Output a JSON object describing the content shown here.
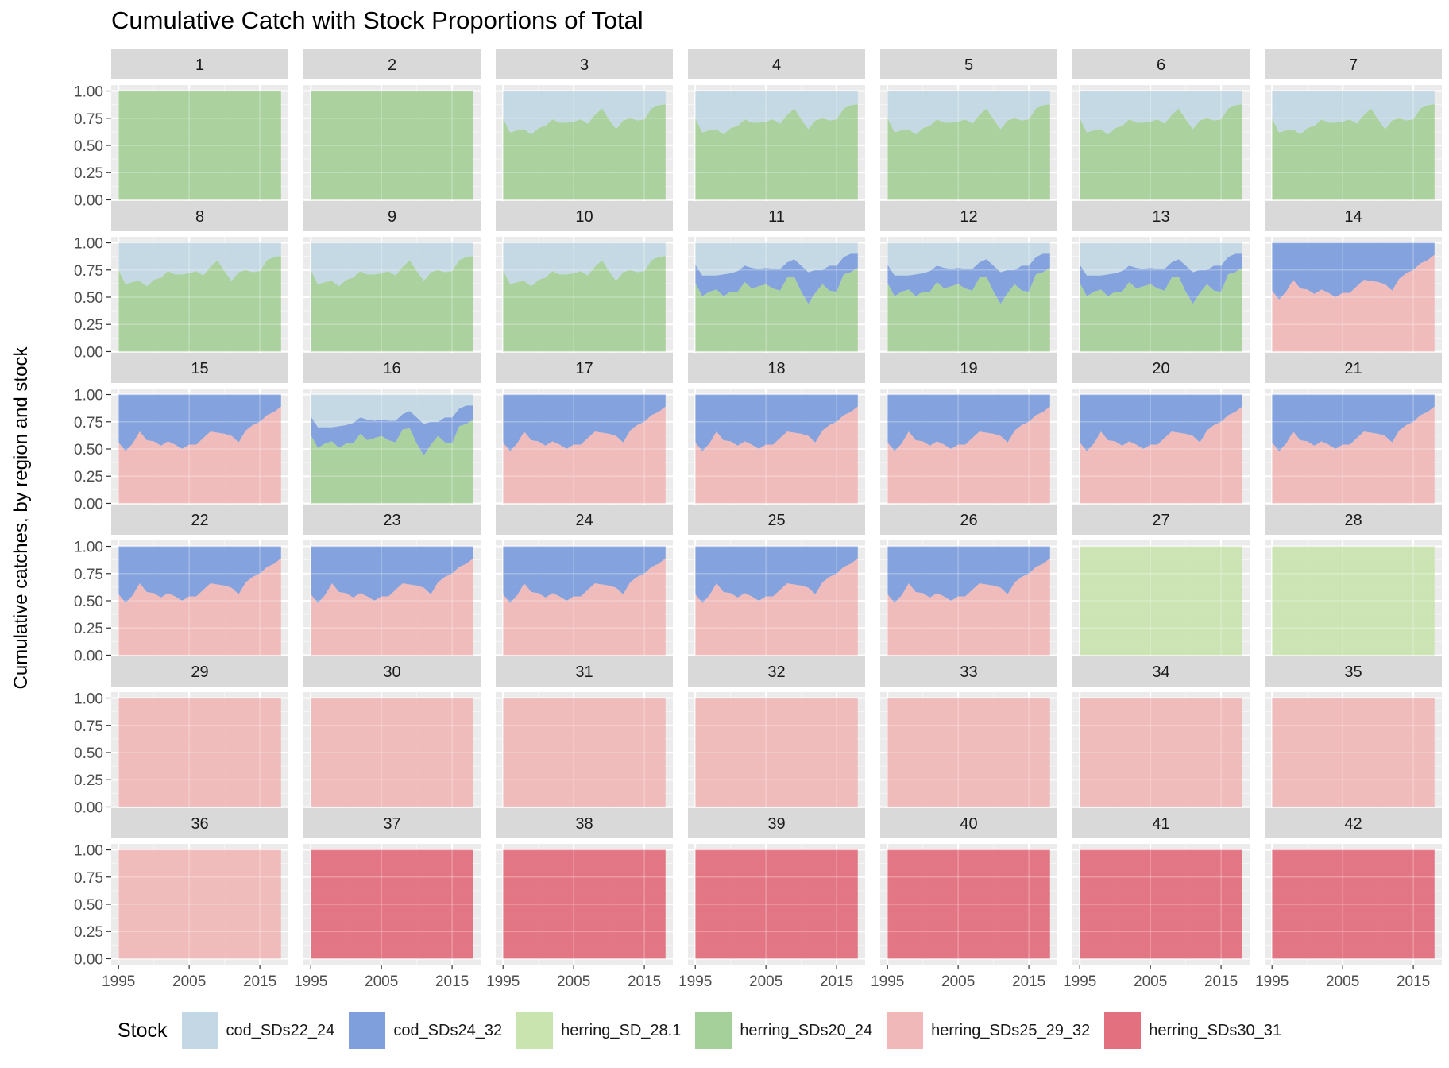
{
  "chart_data": {
    "type": "area",
    "title": "Cumulative Catch with Stock Proportions of Total",
    "xlabel": "",
    "ylabel": "Cumulative catches, by region and stock",
    "stacking": "fill",
    "facet_layout": {
      "ncol": 7,
      "nrow": 6
    },
    "xlim": [
      1995,
      2018
    ],
    "ylim": [
      0,
      1
    ],
    "x_ticks": [
      1995,
      2005,
      2015
    ],
    "y_ticks": [
      "0.00",
      "0.25",
      "0.50",
      "0.75",
      "1.00"
    ],
    "grid": true,
    "legend": {
      "title": "Stock",
      "position": "bottom",
      "entries": [
        "cod_SDs22_24",
        "cod_SDs24_32",
        "herring_SD_28.1",
        "herring_SDs20_24",
        "herring_SDs25_29_32",
        "herring_SDs30_31"
      ]
    },
    "colors": {
      "cod_SDs22_24": "#c3d8e4",
      "cod_SDs24_32": "#7e9edc",
      "herring_SD_28.1": "#cae4b0",
      "herring_SDs20_24": "#a6d09a",
      "herring_SDs25_29_32": "#f0b8b8",
      "herring_SDs30_31": "#e3707f"
    },
    "years": [
      1995,
      1996,
      1997,
      1998,
      1999,
      2000,
      2001,
      2002,
      2003,
      2004,
      2005,
      2006,
      2007,
      2008,
      2009,
      2010,
      2011,
      2012,
      2013,
      2014,
      2015,
      2016,
      2017,
      2018
    ],
    "profiles": {
      "H20": [
        {
          "stock": "herring_SDs20_24",
          "values": [
            0.75,
            0.62,
            0.64,
            0.65,
            0.6,
            0.66,
            0.68,
            0.74,
            0.71,
            0.71,
            0.72,
            0.74,
            0.7,
            0.78,
            0.84,
            0.74,
            0.65,
            0.73,
            0.75,
            0.73,
            0.74,
            0.84,
            0.87,
            0.88
          ]
        },
        {
          "stock": "cod_SDs22_24",
          "values": [
            0.25,
            0.38,
            0.36,
            0.35,
            0.4,
            0.34,
            0.32,
            0.26,
            0.29,
            0.29,
            0.28,
            0.26,
            0.3,
            0.22,
            0.16,
            0.26,
            0.35,
            0.27,
            0.25,
            0.27,
            0.26,
            0.16,
            0.13,
            0.12
          ]
        }
      ],
      "H3": [
        {
          "stock": "herring_SDs20_24",
          "values": [
            0.63,
            0.51,
            0.55,
            0.57,
            0.51,
            0.55,
            0.55,
            0.64,
            0.58,
            0.6,
            0.62,
            0.58,
            0.56,
            0.68,
            0.69,
            0.55,
            0.44,
            0.54,
            0.62,
            0.56,
            0.55,
            0.71,
            0.73,
            0.77
          ]
        },
        {
          "stock": "cod_SDs24_32",
          "values": [
            0.17,
            0.19,
            0.15,
            0.13,
            0.2,
            0.17,
            0.19,
            0.15,
            0.19,
            0.16,
            0.15,
            0.18,
            0.2,
            0.14,
            0.16,
            0.24,
            0.29,
            0.21,
            0.13,
            0.23,
            0.24,
            0.16,
            0.17,
            0.13
          ]
        },
        {
          "stock": "cod_SDs22_24",
          "values": [
            0.2,
            0.3,
            0.3,
            0.3,
            0.29,
            0.28,
            0.26,
            0.21,
            0.23,
            0.24,
            0.23,
            0.24,
            0.24,
            0.18,
            0.15,
            0.21,
            0.27,
            0.25,
            0.25,
            0.21,
            0.21,
            0.13,
            0.1,
            0.1
          ]
        }
      ],
      "HC": [
        {
          "stock": "herring_SDs25_29_32",
          "values": [
            0.56,
            0.48,
            0.55,
            0.66,
            0.58,
            0.57,
            0.53,
            0.57,
            0.54,
            0.5,
            0.54,
            0.54,
            0.6,
            0.66,
            0.65,
            0.64,
            0.62,
            0.56,
            0.67,
            0.72,
            0.75,
            0.81,
            0.84,
            0.89
          ]
        },
        {
          "stock": "cod_SDs24_32",
          "values": [
            0.44,
            0.52,
            0.45,
            0.34,
            0.42,
            0.43,
            0.47,
            0.43,
            0.46,
            0.5,
            0.46,
            0.46,
            0.4,
            0.34,
            0.35,
            0.36,
            0.38,
            0.44,
            0.33,
            0.28,
            0.25,
            0.19,
            0.16,
            0.11
          ]
        }
      ],
      "G": [
        {
          "stock": "herring_SDs20_24",
          "values": [
            1,
            1,
            1,
            1,
            1,
            1,
            1,
            1,
            1,
            1,
            1,
            1,
            1,
            1,
            1,
            1,
            1,
            1,
            1,
            1,
            1,
            1,
            1,
            1
          ]
        }
      ],
      "LG": [
        {
          "stock": "herring_SD_28.1",
          "values": [
            1,
            1,
            1,
            1,
            1,
            1,
            1,
            1,
            1,
            1,
            1,
            1,
            1,
            1,
            1,
            1,
            1,
            1,
            1,
            1,
            1,
            1,
            1,
            1
          ]
        }
      ],
      "P": [
        {
          "stock": "herring_SDs25_29_32",
          "values": [
            1,
            1,
            1,
            1,
            1,
            1,
            1,
            1,
            1,
            1,
            1,
            1,
            1,
            1,
            1,
            1,
            1,
            1,
            1,
            1,
            1,
            1,
            1,
            1
          ]
        }
      ],
      "R": [
        {
          "stock": "herring_SDs30_31",
          "values": [
            1,
            1,
            1,
            1,
            1,
            1,
            1,
            1,
            1,
            1,
            1,
            1,
            1,
            1,
            1,
            1,
            1,
            1,
            1,
            1,
            1,
            1,
            1,
            1
          ]
        }
      ]
    },
    "panels": [
      {
        "label": "1",
        "profile": "G"
      },
      {
        "label": "2",
        "profile": "G"
      },
      {
        "label": "3",
        "profile": "H20"
      },
      {
        "label": "4",
        "profile": "H20"
      },
      {
        "label": "5",
        "profile": "H20"
      },
      {
        "label": "6",
        "profile": "H20"
      },
      {
        "label": "7",
        "profile": "H20"
      },
      {
        "label": "8",
        "profile": "H20"
      },
      {
        "label": "9",
        "profile": "H20"
      },
      {
        "label": "10",
        "profile": "H20"
      },
      {
        "label": "11",
        "profile": "H3"
      },
      {
        "label": "12",
        "profile": "H3"
      },
      {
        "label": "13",
        "profile": "H3"
      },
      {
        "label": "14",
        "profile": "HC"
      },
      {
        "label": "15",
        "profile": "HC"
      },
      {
        "label": "16",
        "profile": "H3"
      },
      {
        "label": "17",
        "profile": "HC"
      },
      {
        "label": "18",
        "profile": "HC"
      },
      {
        "label": "19",
        "profile": "HC"
      },
      {
        "label": "20",
        "profile": "HC"
      },
      {
        "label": "21",
        "profile": "HC"
      },
      {
        "label": "22",
        "profile": "HC"
      },
      {
        "label": "23",
        "profile": "HC"
      },
      {
        "label": "24",
        "profile": "HC"
      },
      {
        "label": "25",
        "profile": "HC"
      },
      {
        "label": "26",
        "profile": "HC"
      },
      {
        "label": "27",
        "profile": "LG"
      },
      {
        "label": "28",
        "profile": "LG"
      },
      {
        "label": "29",
        "profile": "P"
      },
      {
        "label": "30",
        "profile": "P"
      },
      {
        "label": "31",
        "profile": "P"
      },
      {
        "label": "32",
        "profile": "P"
      },
      {
        "label": "33",
        "profile": "P"
      },
      {
        "label": "34",
        "profile": "P"
      },
      {
        "label": "35",
        "profile": "P"
      },
      {
        "label": "36",
        "profile": "P"
      },
      {
        "label": "37",
        "profile": "R"
      },
      {
        "label": "38",
        "profile": "R"
      },
      {
        "label": "39",
        "profile": "R"
      },
      {
        "label": "40",
        "profile": "R"
      },
      {
        "label": "41",
        "profile": "R"
      },
      {
        "label": "42",
        "profile": "R"
      }
    ]
  }
}
